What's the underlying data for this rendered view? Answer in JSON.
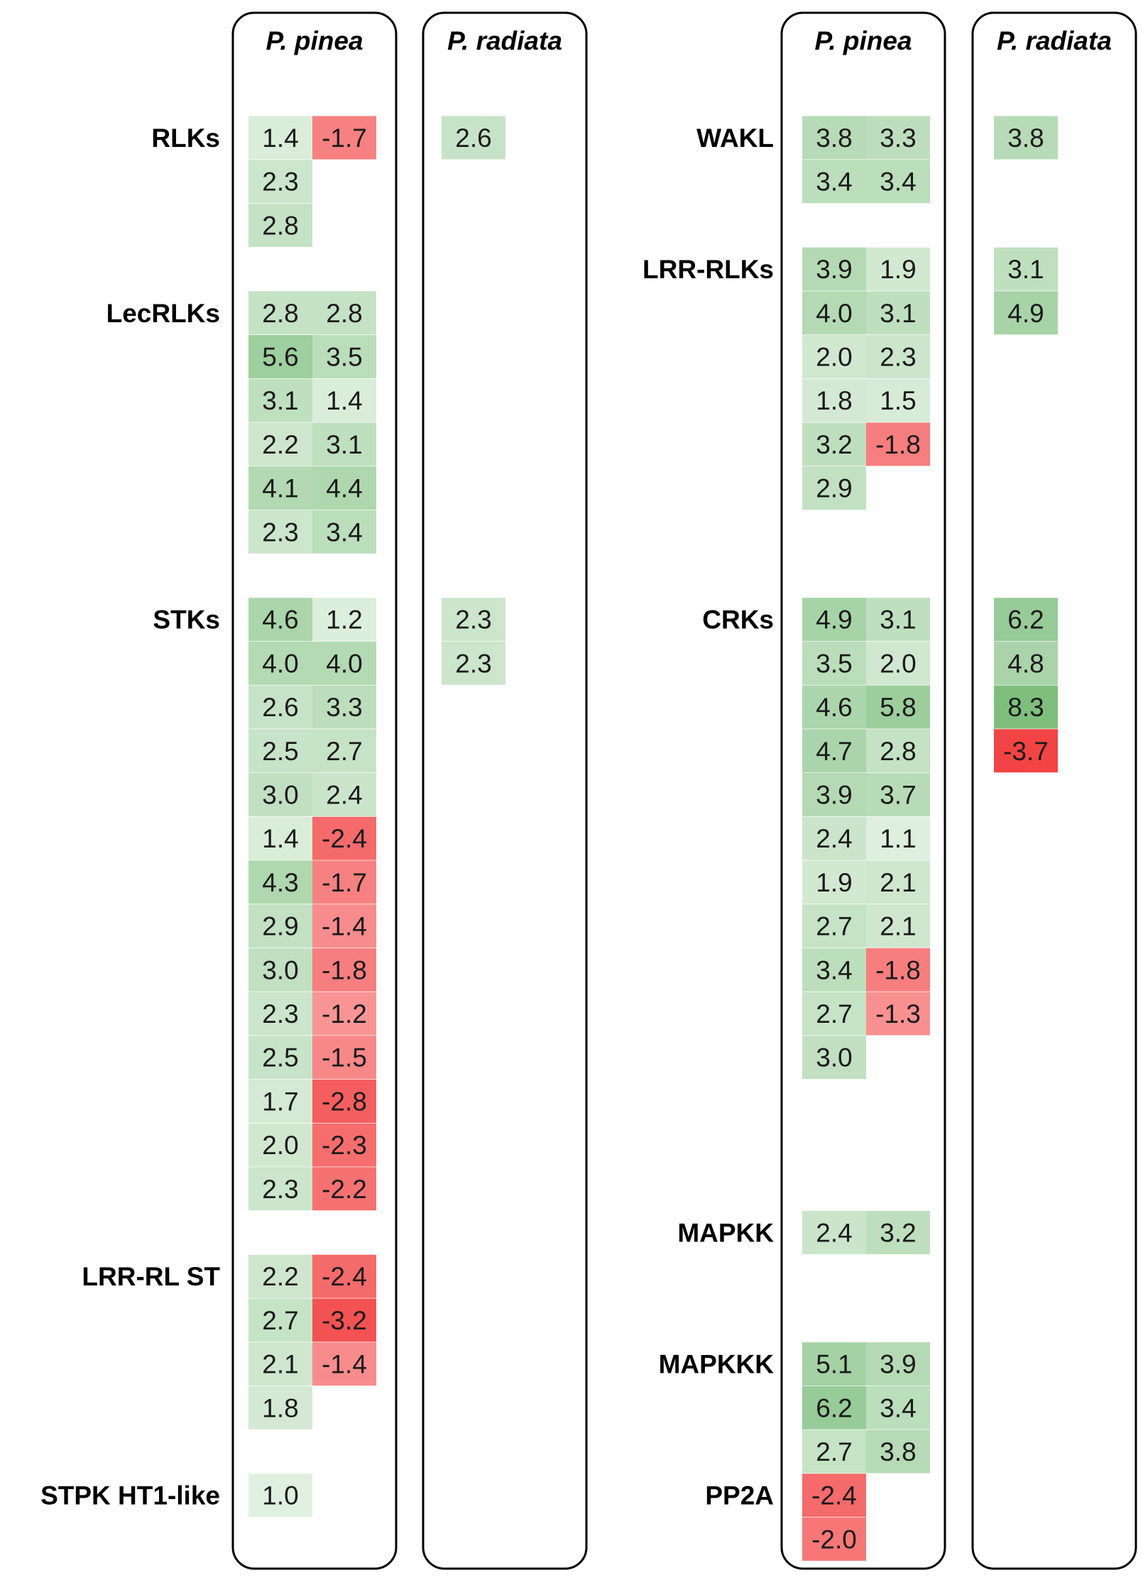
{
  "chart_data": {
    "type": "heatmap",
    "colors": {
      "positive": "#5aaa5a",
      "negative": "#ee0000",
      "panel_border": "#000000"
    },
    "color_scale_max": 8.3,
    "panels": [
      {
        "title": "P. pinea",
        "groups": [
          {
            "label": "RLKs",
            "rows": [
              [
                1.4,
                -1.7
              ],
              [
                2.3,
                null
              ],
              [
                2.8,
                null
              ]
            ]
          },
          {
            "label": "LecRLKs",
            "rows": [
              [
                2.8,
                2.8
              ],
              [
                5.6,
                3.5
              ],
              [
                3.1,
                1.4
              ],
              [
                2.2,
                3.1
              ],
              [
                4.1,
                4.4
              ],
              [
                2.3,
                3.4
              ]
            ]
          },
          {
            "label": "STKs",
            "rows": [
              [
                4.6,
                1.2
              ],
              [
                4.0,
                4.0
              ],
              [
                2.6,
                3.3
              ],
              [
                2.5,
                2.7
              ],
              [
                3.0,
                2.4
              ],
              [
                1.4,
                -2.4
              ],
              [
                4.3,
                -1.7
              ],
              [
                2.9,
                -1.4
              ],
              [
                3.0,
                -1.8
              ],
              [
                2.3,
                -1.2
              ],
              [
                2.5,
                -1.5
              ],
              [
                1.7,
                -2.8
              ],
              [
                2.0,
                -2.3
              ],
              [
                2.3,
                -2.2
              ]
            ]
          },
          {
            "label": "LRR-RL ST",
            "rows": [
              [
                2.2,
                -2.4
              ],
              [
                2.7,
                -3.2
              ],
              [
                2.1,
                -1.4
              ],
              [
                1.8,
                null
              ]
            ]
          },
          {
            "label": "STPK HT1-like",
            "rows": [
              [
                1.0,
                null
              ]
            ]
          }
        ]
      },
      {
        "title": "P. radiata",
        "groups": [
          {
            "label": "RLKs",
            "rows": [
              [
                2.6
              ]
            ]
          },
          {
            "label": "STKs",
            "rows": [
              [
                2.3
              ],
              [
                2.3
              ]
            ]
          }
        ]
      },
      {
        "title": "P. pinea",
        "groups": [
          {
            "label": "WAKL",
            "rows": [
              [
                3.8,
                3.3
              ],
              [
                3.4,
                3.4
              ]
            ]
          },
          {
            "label": "LRR-RLKs",
            "rows": [
              [
                3.9,
                1.9
              ],
              [
                4.0,
                3.1
              ],
              [
                2.0,
                2.3
              ],
              [
                1.8,
                1.5
              ],
              [
                3.2,
                -1.8
              ],
              [
                2.9,
                null
              ]
            ]
          },
          {
            "label": "CRKs",
            "rows": [
              [
                4.9,
                3.1
              ],
              [
                3.5,
                2.0
              ],
              [
                4.6,
                5.8
              ],
              [
                4.7,
                2.8
              ],
              [
                3.9,
                3.7
              ],
              [
                2.4,
                1.1
              ],
              [
                1.9,
                2.1
              ],
              [
                2.7,
                2.1
              ],
              [
                3.4,
                -1.8
              ],
              [
                2.7,
                -1.3
              ],
              [
                3.0,
                null
              ]
            ]
          },
          {
            "label": "MAPKK",
            "rows": [
              [
                2.4,
                3.2
              ]
            ]
          },
          {
            "label": "MAPKKK",
            "rows": [
              [
                5.1,
                3.9
              ],
              [
                6.2,
                3.4
              ],
              [
                2.7,
                3.8
              ]
            ]
          },
          {
            "label": "PP2A",
            "rows": [
              [
                -2.4,
                null
              ],
              [
                -2.0,
                null
              ]
            ]
          }
        ]
      },
      {
        "title": "P. radiata",
        "groups": [
          {
            "label": "WAKL",
            "rows": [
              [
                3.8
              ]
            ]
          },
          {
            "label": "LRR-RLKs",
            "rows": [
              [
                3.1
              ],
              [
                4.9
              ]
            ]
          },
          {
            "label": "CRKs",
            "rows": [
              [
                6.2
              ],
              [
                4.8
              ],
              [
                8.3
              ],
              [
                -3.7
              ]
            ]
          }
        ]
      }
    ]
  }
}
